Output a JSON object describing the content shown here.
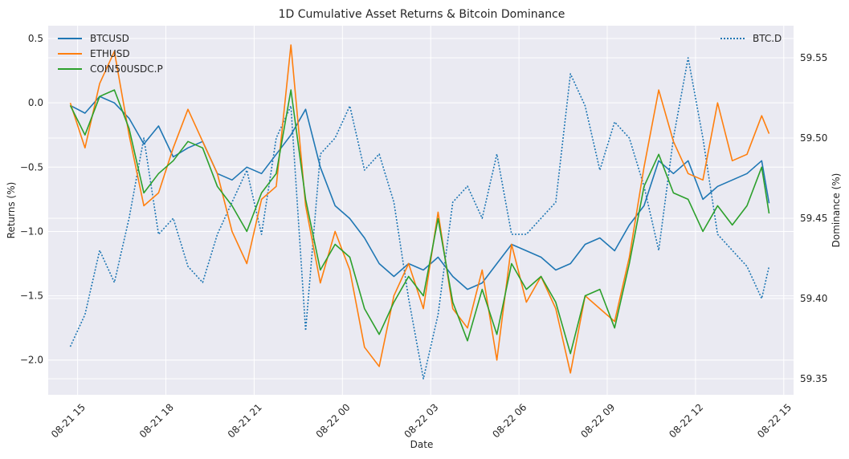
{
  "chart_data": {
    "type": "line",
    "title": "1D Cumulative Asset Returns & Bitcoin Dominance",
    "xlabel": "Date",
    "ylabel": "Returns (%)",
    "y2label": "Dominance (%)",
    "xlim": [
      "2024-08-21 14:00",
      "2024-08-22 15:20"
    ],
    "ylim": [
      -2.27,
      0.6
    ],
    "y2lim": [
      59.34,
      59.57
    ],
    "x_ticks": [
      "08-21 15",
      "08-21 18",
      "08-21 21",
      "08-22 00",
      "08-22 03",
      "08-22 06",
      "08-22 09",
      "08-22 12",
      "08-22 15"
    ],
    "y_ticks": [
      "0.5",
      "0.0",
      "−0.5",
      "−1.0",
      "−1.5",
      "−2.0"
    ],
    "y2_ticks": [
      "59.55",
      "59.50",
      "59.45",
      "59.40",
      "59.35"
    ],
    "grid": true,
    "legend_left": "upper-left",
    "legend_right": "upper-right",
    "colors": {
      "background": "#eaeaf2",
      "grid": "#ffffff",
      "btcusd": "#1f77b4",
      "ethusd": "#ff7f0e",
      "coin50": "#2ca02c",
      "btcd": "#1f77b4"
    },
    "series": [
      {
        "name": "BTCUSD",
        "axis": "left",
        "style": "solid",
        "x": [
          "2024-08-21 14:45",
          "2024-08-21 15:15",
          "2024-08-21 15:45",
          "2024-08-21 16:15",
          "2024-08-21 16:45",
          "2024-08-21 17:15",
          "2024-08-21 17:45",
          "2024-08-21 18:15",
          "2024-08-21 18:45",
          "2024-08-21 19:15",
          "2024-08-21 19:45",
          "2024-08-21 20:15",
          "2024-08-21 20:45",
          "2024-08-21 21:15",
          "2024-08-21 21:45",
          "2024-08-21 22:15",
          "2024-08-21 22:45",
          "2024-08-21 23:15",
          "2024-08-21 23:45",
          "2024-08-22 00:15",
          "2024-08-22 00:45",
          "2024-08-22 01:15",
          "2024-08-22 01:45",
          "2024-08-22 02:15",
          "2024-08-22 02:45",
          "2024-08-22 03:15",
          "2024-08-22 03:45",
          "2024-08-22 04:15",
          "2024-08-22 04:45",
          "2024-08-22 05:15",
          "2024-08-22 05:45",
          "2024-08-22 06:15",
          "2024-08-22 06:45",
          "2024-08-22 07:15",
          "2024-08-22 07:45",
          "2024-08-22 08:15",
          "2024-08-22 08:45",
          "2024-08-22 09:15",
          "2024-08-22 09:45",
          "2024-08-22 10:15",
          "2024-08-22 10:45",
          "2024-08-22 11:15",
          "2024-08-22 11:45",
          "2024-08-22 12:15",
          "2024-08-22 12:45",
          "2024-08-22 13:15",
          "2024-08-22 13:45",
          "2024-08-22 14:15",
          "2024-08-22 14:30"
        ],
        "y": [
          -0.02,
          -0.08,
          0.05,
          0.0,
          -0.12,
          -0.32,
          -0.18,
          -0.42,
          -0.35,
          -0.3,
          -0.55,
          -0.6,
          -0.5,
          -0.55,
          -0.4,
          -0.25,
          -0.05,
          -0.5,
          -0.8,
          -0.9,
          -1.05,
          -1.25,
          -1.35,
          -1.25,
          -1.3,
          -1.2,
          -1.35,
          -1.45,
          -1.4,
          -1.25,
          -1.1,
          -1.15,
          -1.2,
          -1.3,
          -1.25,
          -1.1,
          -1.05,
          -1.15,
          -0.95,
          -0.8,
          -0.45,
          -0.55,
          -0.45,
          -0.75,
          -0.65,
          -0.6,
          -0.55,
          -0.45,
          -0.78
        ]
      },
      {
        "name": "ETHUSD",
        "axis": "left",
        "style": "solid",
        "x": [
          "2024-08-21 14:45",
          "2024-08-21 15:15",
          "2024-08-21 15:45",
          "2024-08-21 16:15",
          "2024-08-21 16:45",
          "2024-08-21 17:15",
          "2024-08-21 17:45",
          "2024-08-21 18:15",
          "2024-08-21 18:45",
          "2024-08-21 19:15",
          "2024-08-21 19:45",
          "2024-08-21 20:15",
          "2024-08-21 20:45",
          "2024-08-21 21:15",
          "2024-08-21 21:45",
          "2024-08-21 22:15",
          "2024-08-21 22:45",
          "2024-08-21 23:15",
          "2024-08-21 23:45",
          "2024-08-22 00:15",
          "2024-08-22 00:45",
          "2024-08-22 01:15",
          "2024-08-22 01:45",
          "2024-08-22 02:15",
          "2024-08-22 02:45",
          "2024-08-22 03:15",
          "2024-08-22 03:45",
          "2024-08-22 04:15",
          "2024-08-22 04:45",
          "2024-08-22 05:15",
          "2024-08-22 05:45",
          "2024-08-22 06:15",
          "2024-08-22 06:45",
          "2024-08-22 07:15",
          "2024-08-22 07:45",
          "2024-08-22 08:15",
          "2024-08-22 08:45",
          "2024-08-22 09:15",
          "2024-08-22 09:45",
          "2024-08-22 10:15",
          "2024-08-22 10:45",
          "2024-08-22 11:15",
          "2024-08-22 11:45",
          "2024-08-22 12:15",
          "2024-08-22 12:45",
          "2024-08-22 13:15",
          "2024-08-22 13:45",
          "2024-08-22 14:15",
          "2024-08-22 14:30"
        ],
        "y": [
          0.0,
          -0.35,
          0.15,
          0.4,
          -0.25,
          -0.8,
          -0.7,
          -0.35,
          -0.05,
          -0.3,
          -0.55,
          -1.0,
          -1.25,
          -0.75,
          -0.65,
          0.45,
          -0.8,
          -1.4,
          -1.0,
          -1.3,
          -1.9,
          -2.05,
          -1.5,
          -1.25,
          -1.6,
          -0.85,
          -1.6,
          -1.75,
          -1.3,
          -2.0,
          -1.1,
          -1.55,
          -1.35,
          -1.6,
          -2.1,
          -1.5,
          -1.6,
          -1.7,
          -1.2,
          -0.5,
          0.1,
          -0.3,
          -0.55,
          -0.6,
          0.0,
          -0.45,
          -0.4,
          -0.1,
          -0.24
        ]
      },
      {
        "name": "COIN50USDC.P",
        "axis": "left",
        "style": "solid",
        "x": [
          "2024-08-21 14:45",
          "2024-08-21 15:15",
          "2024-08-21 15:45",
          "2024-08-21 16:15",
          "2024-08-21 16:45",
          "2024-08-21 17:15",
          "2024-08-21 17:45",
          "2024-08-21 18:15",
          "2024-08-21 18:45",
          "2024-08-21 19:15",
          "2024-08-21 19:45",
          "2024-08-21 20:15",
          "2024-08-21 20:45",
          "2024-08-21 21:15",
          "2024-08-21 21:45",
          "2024-08-21 22:15",
          "2024-08-21 22:45",
          "2024-08-21 23:15",
          "2024-08-21 23:45",
          "2024-08-22 00:15",
          "2024-08-22 00:45",
          "2024-08-22 01:15",
          "2024-08-22 01:45",
          "2024-08-22 02:15",
          "2024-08-22 02:45",
          "2024-08-22 03:15",
          "2024-08-22 03:45",
          "2024-08-22 04:15",
          "2024-08-22 04:45",
          "2024-08-22 05:15",
          "2024-08-22 05:45",
          "2024-08-22 06:15",
          "2024-08-22 06:45",
          "2024-08-22 07:15",
          "2024-08-22 07:45",
          "2024-08-22 08:15",
          "2024-08-22 08:45",
          "2024-08-22 09:15",
          "2024-08-22 09:45",
          "2024-08-22 10:15",
          "2024-08-22 10:45",
          "2024-08-22 11:15",
          "2024-08-22 11:45",
          "2024-08-22 12:15",
          "2024-08-22 12:45",
          "2024-08-22 13:15",
          "2024-08-22 13:45",
          "2024-08-22 14:15",
          "2024-08-22 14:30"
        ],
        "y": [
          -0.02,
          -0.25,
          0.05,
          0.1,
          -0.2,
          -0.7,
          -0.55,
          -0.45,
          -0.3,
          -0.35,
          -0.65,
          -0.8,
          -1.0,
          -0.7,
          -0.55,
          0.1,
          -0.75,
          -1.3,
          -1.1,
          -1.2,
          -1.6,
          -1.8,
          -1.55,
          -1.35,
          -1.5,
          -0.9,
          -1.55,
          -1.85,
          -1.45,
          -1.8,
          -1.25,
          -1.45,
          -1.35,
          -1.55,
          -1.95,
          -1.5,
          -1.45,
          -1.75,
          -1.25,
          -0.65,
          -0.4,
          -0.7,
          -0.75,
          -1.0,
          -0.8,
          -0.95,
          -0.8,
          -0.5,
          -0.86
        ]
      },
      {
        "name": "BTC.D",
        "axis": "right",
        "style": "dotted",
        "x": [
          "2024-08-21 14:45",
          "2024-08-21 15:15",
          "2024-08-21 15:45",
          "2024-08-21 16:15",
          "2024-08-21 16:45",
          "2024-08-21 17:15",
          "2024-08-21 17:45",
          "2024-08-21 18:15",
          "2024-08-21 18:45",
          "2024-08-21 19:15",
          "2024-08-21 19:45",
          "2024-08-21 20:15",
          "2024-08-21 20:45",
          "2024-08-21 21:15",
          "2024-08-21 21:45",
          "2024-08-21 22:15",
          "2024-08-21 22:45",
          "2024-08-21 23:15",
          "2024-08-21 23:45",
          "2024-08-22 00:15",
          "2024-08-22 00:45",
          "2024-08-22 01:15",
          "2024-08-22 01:45",
          "2024-08-22 02:15",
          "2024-08-22 02:45",
          "2024-08-22 03:15",
          "2024-08-22 03:45",
          "2024-08-22 04:15",
          "2024-08-22 04:45",
          "2024-08-22 05:15",
          "2024-08-22 05:45",
          "2024-08-22 06:15",
          "2024-08-22 06:45",
          "2024-08-22 07:15",
          "2024-08-22 07:45",
          "2024-08-22 08:15",
          "2024-08-22 08:45",
          "2024-08-22 09:15",
          "2024-08-22 09:45",
          "2024-08-22 10:15",
          "2024-08-22 10:45",
          "2024-08-22 11:15",
          "2024-08-22 11:45",
          "2024-08-22 12:15",
          "2024-08-22 12:45",
          "2024-08-22 13:15",
          "2024-08-22 13:45",
          "2024-08-22 14:15",
          "2024-08-22 14:30"
        ],
        "y": [
          59.37,
          59.39,
          59.43,
          59.41,
          59.45,
          59.5,
          59.44,
          59.45,
          59.42,
          59.41,
          59.44,
          59.46,
          59.48,
          59.44,
          59.5,
          59.52,
          59.38,
          59.49,
          59.5,
          59.52,
          59.48,
          59.49,
          59.46,
          59.4,
          59.35,
          59.39,
          59.46,
          59.47,
          59.45,
          59.49,
          59.44,
          59.44,
          59.45,
          59.46,
          59.54,
          59.52,
          59.48,
          59.51,
          59.5,
          59.47,
          59.43,
          59.5,
          59.55,
          59.5,
          59.44,
          59.43,
          59.42,
          59.4,
          59.42
        ]
      }
    ]
  }
}
